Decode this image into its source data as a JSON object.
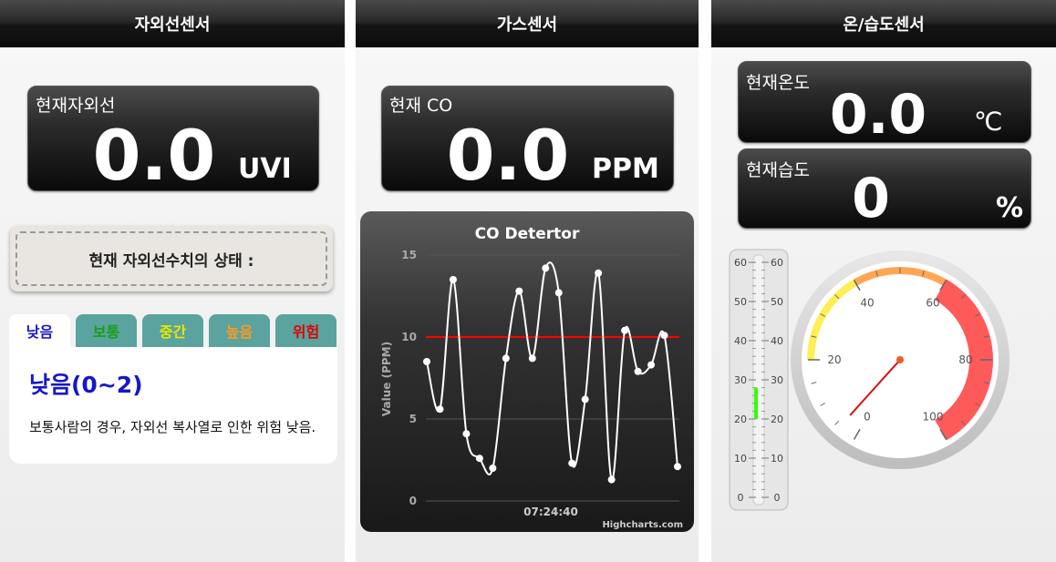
{
  "uv_panel": {
    "title": "자외선센서",
    "readout": {
      "label": "현재자외선",
      "value": "0.0",
      "unit": "UVI"
    },
    "status_label": "현재 자외선수치의 상태 :",
    "tabs": [
      {
        "label": "낮음",
        "color": "#1717c9",
        "active": true
      },
      {
        "label": "보통",
        "color": "#16a016",
        "active": false
      },
      {
        "label": "중간",
        "color": "#e8e800",
        "active": false
      },
      {
        "label": "높음",
        "color": "#ff9a1f",
        "active": false
      },
      {
        "label": "위험",
        "color": "#e00000",
        "active": false
      }
    ],
    "content": {
      "heading": "낮음(0~2)",
      "description": "보통사람의 경우, 자외선 복사열로 인한 위험 낮음."
    }
  },
  "gas_panel": {
    "title": "가스센서",
    "readout": {
      "label": "현재 CO",
      "value": "0.0",
      "unit": "PPM"
    },
    "credit": "Highcharts.com"
  },
  "temp_panel": {
    "title": "온/습도센서",
    "temperature": {
      "label": "현재온도",
      "value": "0.0",
      "unit": "℃"
    },
    "humidity": {
      "label": "현재습도",
      "value": "0",
      "unit": "%"
    },
    "thermometer_ticks": [
      "60",
      "50",
      "40",
      "30",
      "20",
      "10",
      "0"
    ],
    "thermometer_fill": {
      "from": 20,
      "to": 28,
      "color": "#33ff00"
    },
    "gauge": {
      "min": 0,
      "max": 100,
      "value": 4,
      "tick_labels": [
        "0",
        "20",
        "40",
        "60",
        "80",
        "100"
      ],
      "bands": [
        {
          "from": 0,
          "to": 20,
          "color": "#ffffff"
        },
        {
          "from": 20,
          "to": 40,
          "color": "#ffee55"
        },
        {
          "from": 40,
          "to": 60,
          "color": "#ffa655"
        },
        {
          "from": 60,
          "to": 100,
          "color": "#ff5a5a"
        }
      ]
    }
  },
  "chart_data": {
    "type": "line",
    "title": "CO Detertor",
    "ylabel": "Value (PPM)",
    "xlabel": "",
    "x_tick_label": "07:24:40",
    "ylim": [
      0,
      15
    ],
    "y_ticks": [
      0,
      5,
      10,
      15
    ],
    "plot_band_line": {
      "value": 10,
      "color": "#ff0000"
    },
    "series": [
      {
        "color": "#ffffff",
        "values": [
          8.5,
          5.6,
          13.5,
          4.1,
          2.6,
          2.0,
          8.7,
          12.8,
          8.7,
          14.2,
          12.7,
          2.3,
          6.2,
          13.9,
          1.3,
          10.4,
          7.9,
          8.3,
          10.1,
          2.1
        ]
      }
    ],
    "grid": true
  }
}
